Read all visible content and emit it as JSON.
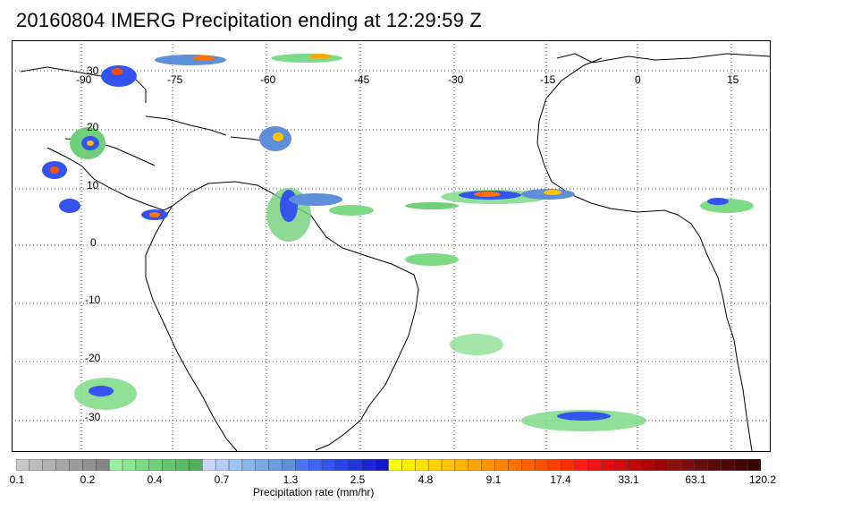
{
  "title": "20160804 IMERG Precipitation ending at 12:29:59 Z",
  "map": {
    "lon_labels": [
      "-90",
      "-75",
      "-60",
      "-45",
      "-30",
      "-15",
      "0",
      "15"
    ],
    "lat_labels": [
      "30",
      "20",
      "10",
      "0",
      "-10",
      "-20",
      "-30"
    ],
    "land_color": "#ffffff",
    "coast_color": "#000000",
    "grid_color": "#555555"
  },
  "colorbar": {
    "label": "Precipitation rate (mm/hr)",
    "tick_labels": [
      "0.1",
      "0.2",
      "0.4",
      "0.7",
      "1.3",
      "2.5",
      "4.8",
      "9.1",
      "17.4",
      "33.1",
      "63.1",
      "120.2"
    ],
    "groups": [
      {
        "name": "gray",
        "colors": [
          "#c8c8c8",
          "#bdbdbd",
          "#b2b2b2",
          "#a6a6a6",
          "#9b9b9b",
          "#909090",
          "#858585"
        ]
      },
      {
        "name": "green",
        "colors": [
          "#9af0a0",
          "#8be593",
          "#7ddb86",
          "#70d07a",
          "#65c56f",
          "#5bba65",
          "#52b05c"
        ]
      },
      {
        "name": "lightblue",
        "colors": [
          "#c8d8ff",
          "#b3cdf8",
          "#9ec2f2",
          "#8ab5ec",
          "#78a8e6",
          "#6b9ce0",
          "#5d8fda"
        ]
      },
      {
        "name": "blue",
        "colors": [
          "#4a74f6",
          "#3f63f2",
          "#3553ee",
          "#2b43e6",
          "#2234dd",
          "#1a26d4",
          "#1318cc"
        ]
      },
      {
        "name": "yellow",
        "colors": [
          "#ffff00",
          "#fff000",
          "#ffe100",
          "#ffd200",
          "#ffc300",
          "#ffb400",
          "#ffa500"
        ]
      },
      {
        "name": "orange",
        "colors": [
          "#ff9400",
          "#ff8300",
          "#ff7200",
          "#ff6100",
          "#ff5000",
          "#ff3f00",
          "#ff2e00"
        ]
      },
      {
        "name": "red",
        "colors": [
          "#ff1a1a",
          "#f01515",
          "#e01010",
          "#d00c0c",
          "#c00808",
          "#b00404",
          "#a00000"
        ]
      },
      {
        "name": "darkred",
        "colors": [
          "#8a1010",
          "#7a0e0e",
          "#6a0c0c",
          "#5c0a0a",
          "#4e0808",
          "#420606",
          "#360404"
        ]
      }
    ]
  }
}
